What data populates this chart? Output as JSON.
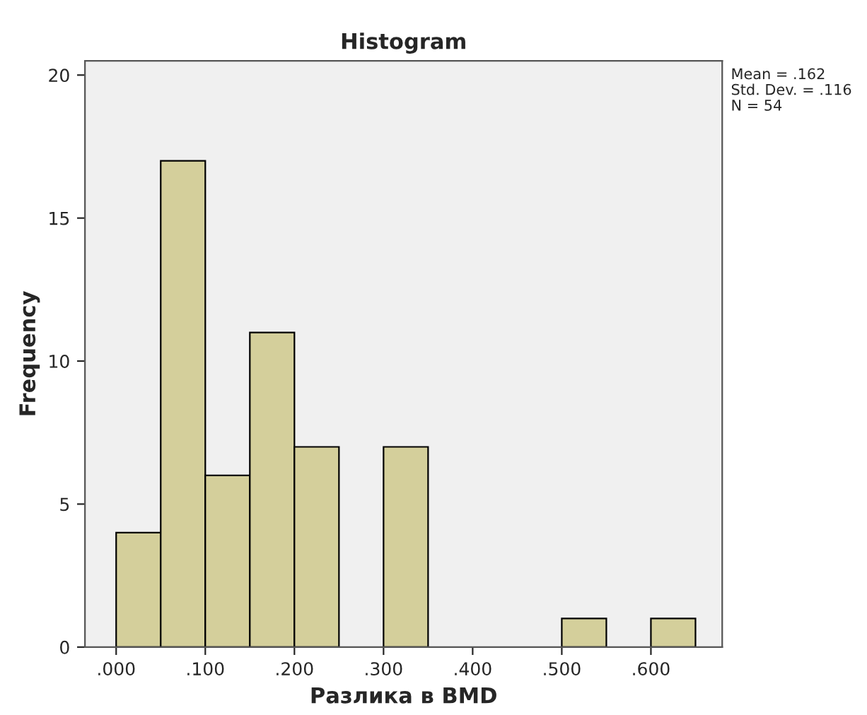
{
  "chart_data": {
    "type": "histogram",
    "title": "Histogram",
    "xlabel": "Разлика в BMD",
    "ylabel": "Frequency",
    "bins": [
      0.0,
      0.05,
      0.1,
      0.15,
      0.2,
      0.25,
      0.3,
      0.35,
      0.4,
      0.45,
      0.5,
      0.55,
      0.6,
      0.65
    ],
    "values": [
      4,
      17,
      6,
      11,
      7,
      0,
      7,
      0,
      0,
      0,
      1,
      0,
      1
    ],
    "color": "#d4cf9b",
    "xlim": [
      -0.035,
      0.68
    ],
    "ylim": [
      0,
      20.5
    ],
    "xticks": [
      {
        "value": 0.0,
        "label": ".000"
      },
      {
        "value": 0.1,
        "label": ".100"
      },
      {
        "value": 0.2,
        "label": ".200"
      },
      {
        "value": 0.3,
        "label": ".300"
      },
      {
        "value": 0.4,
        "label": ".400"
      },
      {
        "value": 0.5,
        "label": ".500"
      },
      {
        "value": 0.6,
        "label": ".600"
      }
    ],
    "yticks": [
      0,
      5,
      10,
      15,
      20
    ],
    "grid": false,
    "legend": false,
    "annotations": [
      "Mean = .162",
      "Std. Dev. = .116",
      "N = 54"
    ]
  }
}
